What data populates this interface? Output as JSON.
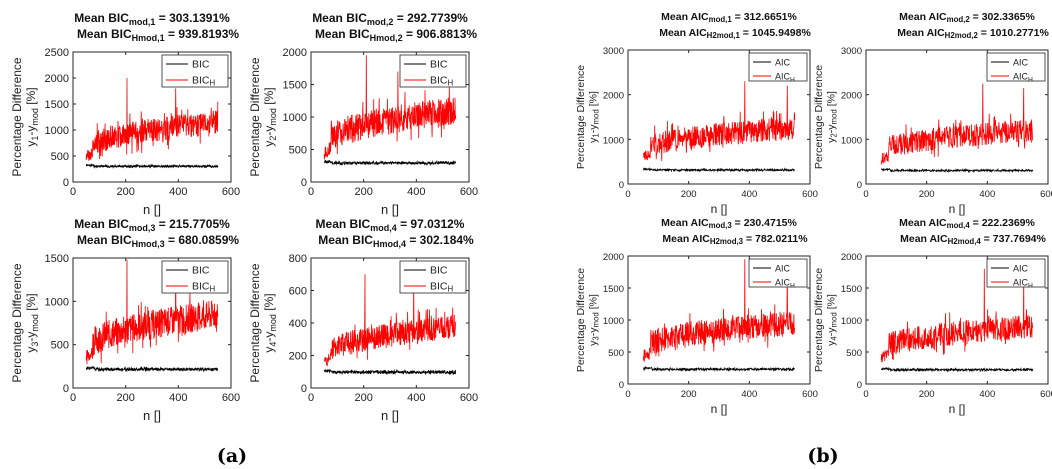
{
  "panel_labels": {
    "a": "(a)",
    "b": "(b)"
  },
  "chart_data": [
    {
      "type": "line",
      "title_l1_pre": "Mean BIC",
      "title_l1_sub": "mod,1",
      "title_l1_post": " = 303.1391%",
      "title_l2_pre": "Mean BIC",
      "title_l2_sub": "Hmod,1",
      "title_l2_post": " = 939.8193%",
      "ylabel_top": "Percentage Difference",
      "ylabel_var": "y",
      "ylabel_sub1": "1",
      "ylabel_mid": "-y",
      "ylabel_sub2": "mod",
      "ylabel_unit": " [%]",
      "xlabel": "n []",
      "xlim": [
        0,
        600
      ],
      "xticks": [
        0,
        200,
        400,
        600
      ],
      "ylim": [
        0,
        2500
      ],
      "yticks": [
        0,
        500,
        1000,
        1500,
        2000,
        2500
      ],
      "legend": {
        "position": "top-right",
        "entries": [
          {
            "pre": "BIC",
            "sub": ""
          },
          {
            "pre": "BIC",
            "sub": "H"
          }
        ]
      },
      "series": [
        {
          "name": "BIC",
          "color": "#000000",
          "x_range": [
            50,
            550
          ],
          "mean": 303.1391,
          "noise": 22,
          "seed": 11
        },
        {
          "name": "BIC_H",
          "color": "#ff0000",
          "x_range": [
            50,
            550
          ],
          "start": 620,
          "end": 1150,
          "noise": 230,
          "spikes": [
            [
              205,
              2000
            ],
            [
              390,
              1800
            ]
          ],
          "seed": 12
        }
      ]
    },
    {
      "type": "line",
      "title_l1_pre": "Mean BIC",
      "title_l1_sub": "mod,2",
      "title_l1_post": " = 292.7739%",
      "title_l2_pre": "Mean BIC",
      "title_l2_sub": "Hmod,2",
      "title_l2_post": " = 906.8813%",
      "ylabel_top": "Percentage Difference",
      "ylabel_var": "y",
      "ylabel_sub1": "2",
      "ylabel_mid": "-y",
      "ylabel_sub2": "mod",
      "ylabel_unit": " [%]",
      "xlabel": "n []",
      "xlim": [
        0,
        600
      ],
      "xticks": [
        0,
        200,
        400,
        600
      ],
      "ylim": [
        0,
        2000
      ],
      "yticks": [
        0,
        500,
        1000,
        1500,
        2000
      ],
      "legend": {
        "position": "top-right",
        "entries": [
          {
            "pre": "BIC",
            "sub": ""
          },
          {
            "pre": "BIC",
            "sub": "H"
          }
        ]
      },
      "series": [
        {
          "name": "BIC",
          "color": "#000000",
          "x_range": [
            50,
            550
          ],
          "mean": 292.7739,
          "noise": 22,
          "seed": 21
        },
        {
          "name": "BIC_H",
          "color": "#ff0000",
          "x_range": [
            50,
            550
          ],
          "start": 580,
          "end": 1100,
          "noise": 220,
          "spikes": [
            [
              210,
              1950
            ],
            [
              330,
              1700
            ]
          ],
          "seed": 22
        }
      ]
    },
    {
      "type": "line",
      "title_l1_pre": "Mean BIC",
      "title_l1_sub": "mod,3",
      "title_l1_post": " = 215.7705%",
      "title_l2_pre": "Mean BIC",
      "title_l2_sub": "Hmod,3",
      "title_l2_post": " = 680.0859%",
      "ylabel_top": "Percentage Difference",
      "ylabel_var": "y",
      "ylabel_sub1": "3",
      "ylabel_mid": "-y",
      "ylabel_sub2": "mod",
      "ylabel_unit": " [%]",
      "xlabel": "n []",
      "xlim": [
        0,
        600
      ],
      "xticks": [
        0,
        200,
        400,
        600
      ],
      "ylim": [
        0,
        1500
      ],
      "yticks": [
        0,
        500,
        1000,
        1500
      ],
      "legend": {
        "position": "top-right",
        "entries": [
          {
            "pre": "BIC",
            "sub": ""
          },
          {
            "pre": "BIC",
            "sub": "H"
          }
        ]
      },
      "series": [
        {
          "name": "BIC",
          "color": "#000000",
          "x_range": [
            50,
            550
          ],
          "mean": 215.7705,
          "noise": 18,
          "seed": 31
        },
        {
          "name": "BIC_H",
          "color": "#ff0000",
          "x_range": [
            50,
            550
          ],
          "start": 450,
          "end": 850,
          "noise": 170,
          "spikes": [
            [
              205,
              1480
            ],
            [
              390,
              1300
            ]
          ],
          "seed": 32
        }
      ]
    },
    {
      "type": "line",
      "title_l1_pre": "Mean BIC",
      "title_l1_sub": "mod,4",
      "title_l1_post": " = 97.0312%",
      "title_l2_pre": "Mean BIC",
      "title_l2_sub": "Hmod,4",
      "title_l2_post": " = 302.184%",
      "ylabel_top": "Percentage Difference",
      "ylabel_var": "y",
      "ylabel_sub1": "4",
      "ylabel_mid": "-y",
      "ylabel_sub2": "mod",
      "ylabel_unit": " [%]",
      "xlabel": "n []",
      "xlim": [
        0,
        600
      ],
      "xticks": [
        0,
        200,
        400,
        600
      ],
      "ylim": [
        0,
        800
      ],
      "yticks": [
        0,
        200,
        400,
        600,
        800
      ],
      "legend": {
        "position": "top-right",
        "entries": [
          {
            "pre": "BIC",
            "sub": ""
          },
          {
            "pre": "BIC",
            "sub": "H"
          }
        ]
      },
      "series": [
        {
          "name": "BIC",
          "color": "#000000",
          "x_range": [
            50,
            550
          ],
          "mean": 97.0312,
          "noise": 10,
          "seed": 41
        },
        {
          "name": "BIC_H",
          "color": "#ff0000",
          "x_range": [
            50,
            550
          ],
          "start": 200,
          "end": 380,
          "noise": 75,
          "spikes": [
            [
              205,
              700
            ],
            [
              390,
              650
            ]
          ],
          "seed": 42
        }
      ]
    },
    {
      "type": "line",
      "title_l1_pre": "Mean AIC",
      "title_l1_sub": "mod,1",
      "title_l1_post": " = 312.6651%",
      "title_l2_pre": "Mean AIC",
      "title_l2_sub": "H2mod,1",
      "title_l2_post": " = 1045.9498%",
      "ylabel_top": "Percentage Difference",
      "ylabel_var": "y",
      "ylabel_sub1": "1",
      "ylabel_mid": "-y",
      "ylabel_sub2": "mod",
      "ylabel_unit": " [%]",
      "xlabel": "n []",
      "xlim": [
        0,
        600
      ],
      "xticks": [
        0,
        200,
        400,
        600
      ],
      "ylim": [
        0,
        3000
      ],
      "yticks": [
        0,
        1000,
        2000,
        3000
      ],
      "legend": {
        "position": "top-right",
        "entries": [
          {
            "pre": "AIC",
            "sub": ""
          },
          {
            "pre": "AIC",
            "sub": "H"
          }
        ]
      },
      "series": [
        {
          "name": "AIC",
          "color": "#000000",
          "x_range": [
            50,
            550
          ],
          "mean": 312.6651,
          "noise": 22,
          "seed": 51
        },
        {
          "name": "AIC_H",
          "color": "#ff0000",
          "x_range": [
            50,
            550
          ],
          "start": 750,
          "end": 1250,
          "noise": 260,
          "spikes": [
            [
              385,
              2300
            ],
            [
              525,
              2200
            ]
          ],
          "seed": 52
        }
      ]
    },
    {
      "type": "line",
      "title_l1_pre": "Mean AIC",
      "title_l1_sub": "mod,2",
      "title_l1_post": " = 302.3365%",
      "title_l2_pre": "Mean AIC",
      "title_l2_sub": "H2mod,2",
      "title_l2_post": " = 1010.2771%",
      "ylabel_top": "Percentage Difference",
      "ylabel_var": "y",
      "ylabel_sub1": "2",
      "ylabel_mid": "-y",
      "ylabel_sub2": "mod",
      "ylabel_unit": " [%]",
      "xlabel": "n []",
      "xlim": [
        0,
        600
      ],
      "xticks": [
        0,
        200,
        400,
        600
      ],
      "ylim": [
        0,
        3000
      ],
      "yticks": [
        0,
        1000,
        2000,
        3000
      ],
      "legend": {
        "position": "top-right",
        "entries": [
          {
            "pre": "AIC",
            "sub": ""
          },
          {
            "pre": "AIC",
            "sub": "H"
          }
        ]
      },
      "series": [
        {
          "name": "AIC",
          "color": "#000000",
          "x_range": [
            50,
            550
          ],
          "mean": 302.3365,
          "noise": 22,
          "seed": 61
        },
        {
          "name": "AIC_H",
          "color": "#ff0000",
          "x_range": [
            50,
            550
          ],
          "start": 720,
          "end": 1200,
          "noise": 250,
          "spikes": [
            [
              385,
              2250
            ],
            [
              520,
              2150
            ]
          ],
          "seed": 62
        }
      ]
    },
    {
      "type": "line",
      "title_l1_pre": "Mean AIC",
      "title_l1_sub": "mod,3",
      "title_l1_post": " = 230.4715%",
      "title_l2_pre": "Mean AIC",
      "title_l2_sub": "H2mod,3",
      "title_l2_post": " = 782.0211%",
      "ylabel_top": "Percentage Difference",
      "ylabel_var": "y",
      "ylabel_sub1": "3",
      "ylabel_mid": "-y",
      "ylabel_sub2": "mod",
      "ylabel_unit": " [%]",
      "xlabel": "n []",
      "xlim": [
        0,
        600
      ],
      "xticks": [
        0,
        200,
        400,
        600
      ],
      "ylim": [
        0,
        2000
      ],
      "yticks": [
        0,
        500,
        1000,
        1500,
        2000
      ],
      "legend": {
        "position": "top-right",
        "entries": [
          {
            "pre": "AIC",
            "sub": ""
          },
          {
            "pre": "AIC",
            "sub": "H"
          }
        ]
      },
      "series": [
        {
          "name": "AIC",
          "color": "#000000",
          "x_range": [
            50,
            550
          ],
          "mean": 230.4715,
          "noise": 18,
          "seed": 71
        },
        {
          "name": "AIC_H",
          "color": "#ff0000",
          "x_range": [
            50,
            550
          ],
          "start": 560,
          "end": 950,
          "noise": 200,
          "spikes": [
            [
              385,
              1950
            ],
            [
              525,
              1850
            ]
          ],
          "seed": 72
        }
      ]
    },
    {
      "type": "line",
      "title_l1_pre": "Mean AIC",
      "title_l1_sub": "mod,4",
      "title_l1_post": " = 222.2369%",
      "title_l2_pre": "Mean AIC",
      "title_l2_sub": "H2mod,4",
      "title_l2_post": " = 737.7694%",
      "ylabel_top": "Percentage Difference",
      "ylabel_var": "y",
      "ylabel_sub1": "4",
      "ylabel_mid": "-y",
      "ylabel_sub2": "mod",
      "ylabel_unit": " [%]",
      "xlabel": "n []",
      "xlim": [
        0,
        600
      ],
      "xticks": [
        0,
        200,
        400,
        600
      ],
      "ylim": [
        0,
        2000
      ],
      "yticks": [
        0,
        500,
        1000,
        1500,
        2000
      ],
      "legend": {
        "position": "top-right",
        "entries": [
          {
            "pre": "AIC",
            "sub": ""
          },
          {
            "pre": "AIC",
            "sub": "H"
          }
        ]
      },
      "series": [
        {
          "name": "AIC",
          "color": "#000000",
          "x_range": [
            50,
            550
          ],
          "mean": 222.2369,
          "noise": 18,
          "seed": 81
        },
        {
          "name": "AIC_H",
          "color": "#ff0000",
          "x_range": [
            50,
            550
          ],
          "start": 540,
          "end": 900,
          "noise": 190,
          "spikes": [
            [
              390,
              1800
            ],
            [
              520,
              1700
            ]
          ],
          "seed": 82
        }
      ]
    }
  ]
}
